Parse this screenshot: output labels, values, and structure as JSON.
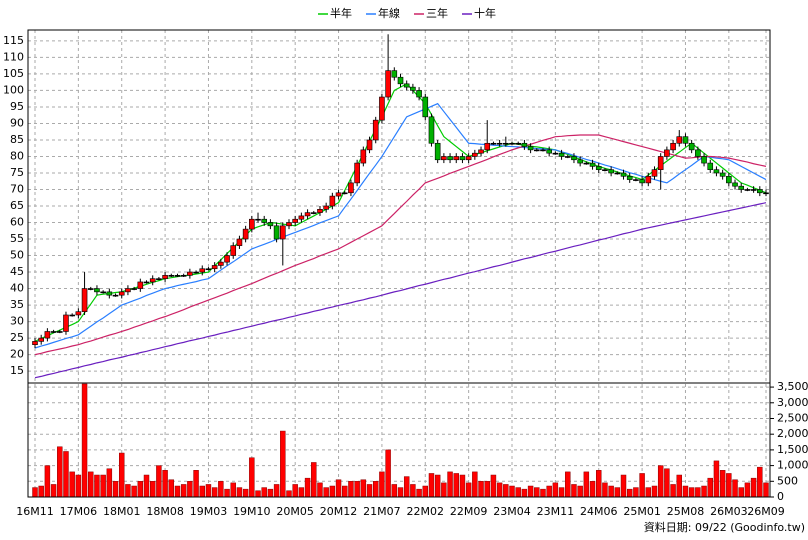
{
  "chart_data": {
    "type": "candlestick",
    "legend": "top",
    "grid": true,
    "footer": "資料日期: 09/22 (Goodinfo.tw)",
    "categories": [
      "16M11",
      null,
      null,
      null,
      null,
      null,
      null,
      "17M06",
      null,
      null,
      null,
      null,
      null,
      null,
      "18M01",
      null,
      null,
      null,
      null,
      null,
      null,
      "18M08",
      null,
      null,
      null,
      null,
      null,
      null,
      "19M03",
      null,
      null,
      null,
      null,
      null,
      null,
      "19M10",
      null,
      null,
      null,
      null,
      null,
      null,
      "20M05",
      null,
      null,
      null,
      null,
      null,
      null,
      "20M12",
      null,
      null,
      null,
      null,
      null,
      null,
      "21M07",
      null,
      null,
      null,
      null,
      null,
      null,
      "22M02",
      null,
      null,
      null,
      null,
      null,
      null,
      "22M09",
      null,
      null,
      null,
      null,
      null,
      null,
      "23M04",
      null,
      null,
      null,
      null,
      null,
      null,
      "23M11",
      null,
      null,
      null,
      null,
      null,
      null,
      "24M06",
      null,
      null,
      null,
      null,
      null,
      null,
      "25M01",
      null,
      null,
      null,
      null,
      null,
      null,
      "25M08",
      null,
      null,
      null,
      null,
      null,
      null,
      "26M03",
      null,
      null,
      null,
      null,
      null,
      "26M09"
    ],
    "ylim": [
      11.4,
      118.3
    ],
    "yticks": [
      15,
      20,
      25,
      30,
      35,
      40,
      45,
      50,
      55,
      60,
      65,
      70,
      75,
      80,
      85,
      90,
      95,
      100,
      105,
      110,
      115
    ],
    "up_color": "#ff0000",
    "down_color": "#00b000",
    "ohlc": [
      [
        23,
        25,
        22,
        24
      ],
      [
        24,
        26,
        23,
        25
      ],
      [
        25,
        28,
        24,
        27
      ],
      [
        27,
        27.5,
        26.5,
        27
      ],
      [
        27,
        27.5,
        26.5,
        27
      ],
      [
        27,
        33,
        26,
        32
      ],
      [
        32,
        32.5,
        31.5,
        32
      ],
      [
        32,
        34,
        31,
        33
      ],
      [
        33,
        45,
        32,
        40
      ],
      [
        40,
        40.5,
        39.5,
        40
      ],
      [
        40,
        41,
        38,
        39
      ],
      [
        39,
        39.5,
        38.5,
        39
      ],
      [
        39,
        40,
        37,
        38
      ],
      [
        38,
        38.5,
        37.5,
        38
      ],
      [
        38,
        40,
        37,
        39
      ],
      [
        39,
        41,
        38,
        40
      ],
      [
        40,
        40.5,
        39.5,
        40
      ],
      [
        40,
        43,
        39,
        42
      ],
      [
        42,
        42.5,
        41.5,
        42
      ],
      [
        42,
        44,
        41,
        43
      ],
      [
        43,
        43.5,
        42.5,
        43
      ],
      [
        43,
        45,
        42,
        44
      ],
      [
        44,
        44.5,
        43.5,
        44
      ],
      [
        44,
        44.5,
        43.5,
        44
      ],
      [
        44,
        44.5,
        43.5,
        44
      ],
      [
        44,
        46,
        43,
        45
      ],
      [
        45,
        45.5,
        44.5,
        45
      ],
      [
        45,
        47,
        44,
        46
      ],
      [
        46,
        46.5,
        45.5,
        46
      ],
      [
        46,
        48,
        45,
        47
      ],
      [
        47,
        49,
        46,
        48
      ],
      [
        48,
        51,
        47,
        50
      ],
      [
        50,
        54,
        49,
        53
      ],
      [
        53,
        56,
        52,
        55
      ],
      [
        55,
        59,
        54,
        58
      ],
      [
        58,
        62,
        57,
        61
      ],
      [
        61,
        63,
        60,
        61
      ],
      [
        61,
        62,
        59,
        60
      ],
      [
        60,
        61,
        58,
        59
      ],
      [
        59,
        60,
        54,
        55
      ],
      [
        55,
        60,
        47,
        59
      ],
      [
        59,
        61,
        58,
        60
      ],
      [
        60,
        62,
        59,
        61
      ],
      [
        61,
        63,
        60,
        62
      ],
      [
        62,
        64,
        61,
        63
      ],
      [
        63,
        63.5,
        62.5,
        63
      ],
      [
        63,
        65,
        62,
        64
      ],
      [
        64,
        66,
        63,
        65
      ],
      [
        65,
        69,
        64,
        68
      ],
      [
        68,
        70,
        67,
        69
      ],
      [
        69,
        69.5,
        68.5,
        69
      ],
      [
        69,
        73,
        68,
        72
      ],
      [
        72,
        79,
        71,
        78
      ],
      [
        78,
        83,
        77,
        82
      ],
      [
        82,
        86,
        81,
        85
      ],
      [
        85,
        92,
        84,
        91
      ],
      [
        91,
        99,
        90,
        98
      ],
      [
        98,
        117,
        97,
        106
      ],
      [
        106,
        107,
        103,
        104
      ],
      [
        104,
        105,
        101,
        102
      ],
      [
        102,
        103,
        100,
        101
      ],
      [
        101,
        102,
        99,
        100
      ],
      [
        100,
        101,
        97,
        98
      ],
      [
        98,
        99,
        91,
        92
      ],
      [
        92,
        93,
        83,
        84
      ],
      [
        84,
        85,
        78,
        79
      ],
      [
        79,
        81,
        78,
        80
      ],
      [
        80,
        81,
        78,
        79
      ],
      [
        79,
        81,
        78,
        80
      ],
      [
        80,
        81,
        78,
        79
      ],
      [
        79,
        81,
        78,
        80
      ],
      [
        80,
        82,
        79,
        81
      ],
      [
        81,
        83,
        80,
        82
      ],
      [
        82,
        91,
        81,
        84
      ],
      [
        84,
        84.5,
        83.5,
        84
      ],
      [
        84,
        85,
        83,
        84
      ],
      [
        84,
        86,
        83,
        84
      ],
      [
        84,
        84.5,
        83.5,
        84
      ],
      [
        84,
        84.5,
        83.5,
        84
      ],
      [
        84,
        85,
        82,
        83
      ],
      [
        83,
        84,
        81,
        82
      ],
      [
        82,
        82.5,
        81.5,
        82
      ],
      [
        82,
        82.5,
        81.5,
        82
      ],
      [
        82,
        83,
        80,
        81
      ],
      [
        81,
        81.5,
        80.5,
        81
      ],
      [
        81,
        82,
        79,
        80
      ],
      [
        80,
        80.5,
        79.5,
        80
      ],
      [
        80,
        81,
        78,
        79
      ],
      [
        79,
        80,
        77,
        78
      ],
      [
        78,
        78.5,
        77.5,
        78
      ],
      [
        78,
        79,
        76,
        77
      ],
      [
        77,
        78,
        75,
        76
      ],
      [
        76,
        76.5,
        75.5,
        76
      ],
      [
        76,
        77,
        74,
        75
      ],
      [
        75,
        75.5,
        74.5,
        75
      ],
      [
        75,
        76,
        73,
        74
      ],
      [
        74,
        75,
        72,
        73
      ],
      [
        73,
        73.5,
        72.5,
        73
      ],
      [
        73,
        74,
        71,
        72
      ],
      [
        72,
        75,
        71,
        74
      ],
      [
        74,
        77,
        73,
        76
      ],
      [
        76,
        81,
        70,
        80
      ],
      [
        80,
        83,
        79,
        82
      ],
      [
        82,
        85,
        81,
        84
      ],
      [
        84,
        88,
        83,
        86
      ],
      [
        86,
        87,
        83,
        84
      ],
      [
        84,
        85,
        81,
        82
      ],
      [
        82,
        83,
        79,
        80
      ],
      [
        80,
        81,
        77,
        78
      ],
      [
        78,
        79,
        75,
        76
      ],
      [
        76,
        77,
        74,
        75
      ],
      [
        75,
        76,
        73,
        74
      ],
      [
        74,
        75,
        71,
        72
      ],
      [
        72,
        73,
        70,
        71
      ],
      [
        71,
        72,
        69,
        70
      ],
      [
        70,
        70.5,
        69.5,
        70
      ],
      [
        70,
        71,
        69,
        70
      ],
      [
        70,
        71,
        68,
        69
      ],
      [
        69,
        70,
        68,
        69
      ]
    ],
    "series": [
      {
        "name": "半年",
        "color": "#00cc00",
        "values": [
          24,
          24.9,
          25.7,
          26.6,
          27.4,
          28.3,
          29.1,
          30,
          32.7,
          35.3,
          38,
          38.3,
          38.5,
          38.8,
          39,
          39.6,
          40.1,
          40.7,
          41.3,
          41.9,
          42.4,
          43,
          43.3,
          43.6,
          43.9,
          44.1,
          44.4,
          44.7,
          45,
          46.9,
          48.7,
          50.6,
          52.4,
          54.3,
          56.1,
          58,
          58.7,
          59.3,
          60,
          59.8,
          59.5,
          59.3,
          59,
          60,
          61,
          62,
          63,
          64,
          65,
          66,
          69.7,
          73.4,
          77.1,
          80.9,
          84.6,
          88.3,
          92,
          96,
          100,
          101,
          102,
          100,
          98,
          96,
          92.7,
          89.3,
          86,
          84.5,
          83,
          81.5,
          80,
          80.6,
          81.1,
          81.7,
          82.3,
          82.9,
          83.4,
          84,
          83.7,
          83.4,
          83.1,
          82.9,
          82.6,
          82.3,
          82,
          81.3,
          80.6,
          79.9,
          79.1,
          78.4,
          77.7,
          77,
          76.4,
          75.9,
          75.3,
          74.7,
          74.1,
          73.6,
          73,
          74.4,
          75.8,
          77.2,
          78.6,
          80,
          81.3,
          82.7,
          84,
          82.5,
          81,
          79.5,
          78,
          76.5,
          75,
          73.5,
          72,
          71.3,
          70.5,
          69.8,
          69
        ]
      },
      {
        "name": "年線",
        "color": "#2a7fff",
        "values": [
          22,
          22.6,
          23.1,
          23.7,
          24.3,
          24.9,
          25.4,
          26,
          27.3,
          28.6,
          29.9,
          31.1,
          32.4,
          33.7,
          35,
          35.7,
          36.4,
          37.1,
          37.9,
          38.6,
          39.3,
          40,
          40.4,
          40.9,
          41.3,
          41.7,
          42.1,
          42.6,
          43,
          44.3,
          45.6,
          46.9,
          48.1,
          49.4,
          50.7,
          52,
          52.7,
          53.4,
          54.1,
          54.9,
          55.6,
          56.3,
          57,
          57.7,
          58.4,
          59.1,
          59.9,
          60.6,
          61.3,
          62,
          64.6,
          67.1,
          69.7,
          72.3,
          74.9,
          77.4,
          80,
          83,
          86,
          89,
          92,
          92.8,
          93.6,
          94.4,
          95.2,
          96,
          93.6,
          91.2,
          88.8,
          86.4,
          84,
          83.9,
          83.7,
          83.6,
          83.4,
          83.3,
          83.1,
          83,
          82.9,
          82.7,
          82.6,
          82.4,
          82.3,
          82.1,
          82,
          81.4,
          80.9,
          80.3,
          79.7,
          79.1,
          78.6,
          78,
          77.4,
          76.9,
          76.3,
          75.7,
          75.1,
          74.6,
          74,
          73.5,
          73,
          72.5,
          72,
          73.3,
          74.7,
          76,
          77.3,
          78.7,
          80,
          79.8,
          79.5,
          79.3,
          79,
          78,
          77,
          76,
          75,
          74,
          73
        ]
      },
      {
        "name": "三年",
        "color": "#cc2266",
        "values": [
          20,
          20.4,
          20.9,
          21.3,
          21.7,
          22.1,
          22.6,
          23,
          23.6,
          24.1,
          24.7,
          25.3,
          25.9,
          26.4,
          27,
          27.6,
          28.3,
          28.9,
          29.6,
          30.2,
          30.9,
          31.5,
          32.2,
          32.9,
          33.6,
          34.4,
          35.1,
          35.8,
          36.5,
          37.2,
          37.9,
          38.6,
          39.4,
          40.1,
          40.8,
          41.5,
          42.3,
          43.1,
          43.9,
          44.6,
          45.4,
          46.2,
          47,
          47.7,
          48.4,
          49.1,
          49.9,
          50.6,
          51.3,
          52,
          53,
          54,
          55,
          56,
          57,
          58,
          59,
          60.9,
          62.7,
          64.6,
          66.4,
          68.3,
          70.1,
          72,
          72.7,
          73.4,
          74.1,
          74.9,
          75.6,
          76.3,
          77,
          77.7,
          78.4,
          79.1,
          79.9,
          80.6,
          81.3,
          82,
          82.6,
          83.1,
          83.7,
          84.3,
          84.9,
          85.4,
          86,
          86.1,
          86.3,
          86.4,
          86.5,
          86.5,
          86.5,
          86.5,
          86,
          85.5,
          85,
          84.5,
          84,
          83.5,
          83,
          82.5,
          82,
          81.5,
          81,
          80.5,
          80,
          79.5,
          79.6,
          79.8,
          80,
          80,
          79.9,
          79.7,
          79.5,
          79.1,
          78.7,
          78.3,
          77.8,
          77.4,
          77
        ]
      },
      {
        "name": "十年",
        "color": "#6a1fc0",
        "values": [
          13,
          13.4,
          13.9,
          14.3,
          14.8,
          15.2,
          15.7,
          16.1,
          16.6,
          17,
          17.5,
          17.9,
          18.4,
          18.8,
          19.2,
          19.7,
          20.1,
          20.6,
          21,
          21.5,
          21.9,
          22.4,
          22.8,
          23.3,
          23.7,
          24.2,
          24.6,
          25,
          25.5,
          25.9,
          26.4,
          26.8,
          27.3,
          27.7,
          28.2,
          28.6,
          29.1,
          29.5,
          30,
          30.4,
          30.8,
          31.3,
          31.7,
          32.2,
          32.6,
          33.1,
          33.5,
          34,
          34.4,
          34.9,
          35.3,
          35.7,
          36.2,
          36.6,
          37.1,
          37.5,
          38,
          38.5,
          39,
          39.4,
          39.9,
          40.4,
          40.9,
          41.3,
          41.8,
          42.3,
          42.8,
          43.2,
          43.7,
          44.2,
          44.7,
          45.1,
          45.6,
          46.1,
          46.6,
          47,
          47.5,
          48,
          48.5,
          49,
          49.4,
          49.9,
          50.4,
          50.9,
          51.3,
          51.8,
          52.3,
          52.8,
          53.2,
          53.7,
          54.2,
          54.7,
          55.1,
          55.6,
          56.1,
          56.6,
          57,
          57.5,
          58,
          58.4,
          58.8,
          59.2,
          59.6,
          60,
          60.4,
          60.8,
          61.2,
          61.6,
          62,
          62.4,
          62.8,
          63.2,
          63.6,
          64,
          64.4,
          64.8,
          65.2,
          65.6,
          66
        ]
      }
    ],
    "y2lim": [
      0,
      3630
    ],
    "y2ticks": [
      0,
      500,
      {
        "value": 1000,
        "label": "1,000"
      },
      {
        "value": 1500,
        "label": "1,500"
      },
      {
        "value": 2000,
        "label": "2,000"
      },
      {
        "value": 2500,
        "label": "2,500"
      },
      {
        "value": 3000,
        "label": "3,000"
      },
      {
        "value": 3500,
        "label": "3,500"
      }
    ],
    "volume": {
      "color": "#ff0000",
      "values": [
        300,
        350,
        1000,
        400,
        1600,
        1450,
        800,
        700,
        3600,
        800,
        700,
        700,
        900,
        500,
        1400,
        400,
        350,
        500,
        700,
        500,
        1000,
        850,
        550,
        350,
        400,
        500,
        850,
        350,
        400,
        300,
        500,
        250,
        450,
        300,
        250,
        1250,
        200,
        300,
        250,
        400,
        2100,
        200,
        400,
        300,
        600,
        1100,
        450,
        300,
        350,
        550,
        350,
        500,
        500,
        550,
        400,
        500,
        800,
        1500,
        400,
        300,
        650,
        400,
        250,
        350,
        750,
        700,
        450,
        800,
        750,
        700,
        450,
        800,
        500,
        500,
        700,
        450,
        400,
        350,
        300,
        250,
        350,
        300,
        250,
        350,
        450,
        300,
        800,
        400,
        350,
        800,
        500,
        850,
        450,
        350,
        300,
        700,
        250,
        300,
        750,
        300,
        350,
        1000,
        900,
        400,
        700,
        350,
        300,
        300,
        350,
        600,
        1150,
        850,
        750,
        550,
        300,
        450,
        600,
        950,
        450
      ]
    }
  }
}
